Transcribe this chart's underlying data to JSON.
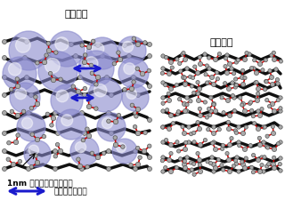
{
  "title_left": "疎な構造",
  "title_right": "密な構造",
  "annotation1": "1nm 程度の大きさの空隙",
  "annotation2": "：主鎖間の相関",
  "sphere_color": "#8888cc",
  "sphere_alpha": 0.6,
  "chain_color": "#111111",
  "node_color": "#aaaaaa",
  "node_edge_color": "#555555",
  "bond_red_color": "#cc0000",
  "arrow_color": "#1a1acc",
  "bg_color": "#ffffff",
  "font_size_title": 8,
  "font_size_annot": 6,
  "font_size_annot2": 6.5
}
